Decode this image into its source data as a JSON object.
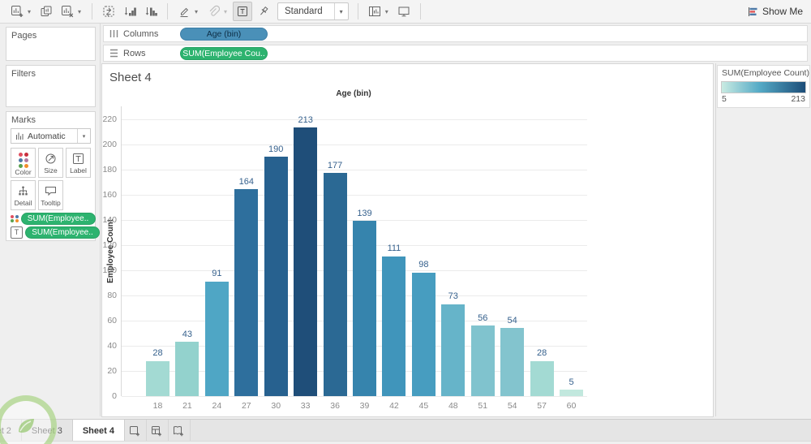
{
  "toolbar": {
    "fit_label": "Standard",
    "show_me_label": "Show Me",
    "icons": [
      "new-worksheet",
      "duplicate-sheet",
      "clear-sheet",
      "swap-rows-and-columns",
      "sort-ascending",
      "sort-descending",
      "highlight",
      "group-members",
      "show-mark-labels",
      "fix-axes",
      "fit-selector",
      "show-hide-cards",
      "presentation-mode"
    ]
  },
  "shelves": {
    "columns_label": "Columns",
    "rows_label": "Rows",
    "columns_pills": [
      {
        "label": "Age (bin)",
        "type": "dimension"
      }
    ],
    "rows_pills": [
      {
        "label": "SUM(Employee Cou..",
        "type": "measure"
      }
    ]
  },
  "left_panel": {
    "pages_label": "Pages",
    "filters_label": "Filters",
    "marks": {
      "label": "Marks",
      "mark_type": "Automatic",
      "buttons": [
        "Color",
        "Size",
        "Label",
        "Detail",
        "Tooltip"
      ],
      "pills": [
        {
          "icon": "color-dots",
          "label": "SUM(Employee.."
        },
        {
          "icon": "label-t",
          "label": "SUM(Employee.."
        }
      ]
    }
  },
  "sheet": {
    "title": "Sheet 4"
  },
  "legend": {
    "title": "SUM(Employee Count)",
    "min": "5",
    "max": "213",
    "gradient": [
      "#c9ebe2",
      "#55aac6",
      "#1c4d78"
    ]
  },
  "tabs": {
    "items": [
      "Sheet 2",
      "Sheet 3",
      "Sheet 4"
    ],
    "active": "Sheet 4"
  },
  "chart_data": {
    "type": "bar",
    "title": "Sheet 4",
    "x_axis_title": "Age (bin)",
    "ylabel": "Employee Count",
    "categories": [
      18,
      21,
      24,
      27,
      30,
      33,
      36,
      39,
      42,
      45,
      48,
      51,
      54,
      57,
      60
    ],
    "values": [
      28,
      43,
      91,
      164,
      190,
      213,
      177,
      139,
      111,
      98,
      73,
      56,
      54,
      28,
      5
    ],
    "bar_colors": [
      "#a3dad3",
      "#93d2cd",
      "#4fa6c5",
      "#2e6f9d",
      "#27618f",
      "#1f4e79",
      "#2b6994",
      "#3684ad",
      "#4095bb",
      "#479dc0",
      "#66b4c9",
      "#80c3ce",
      "#83c4ce",
      "#a3dad3",
      "#c2e8de"
    ],
    "yticks": [
      0,
      20,
      40,
      60,
      80,
      100,
      120,
      140,
      160,
      180,
      200,
      220
    ],
    "ylim": [
      0,
      230
    ],
    "grid": "horizontal",
    "value_label_color": "#36618d",
    "color_encoding": {
      "field": "SUM(Employee Count)",
      "min": 5,
      "max": 213
    }
  }
}
